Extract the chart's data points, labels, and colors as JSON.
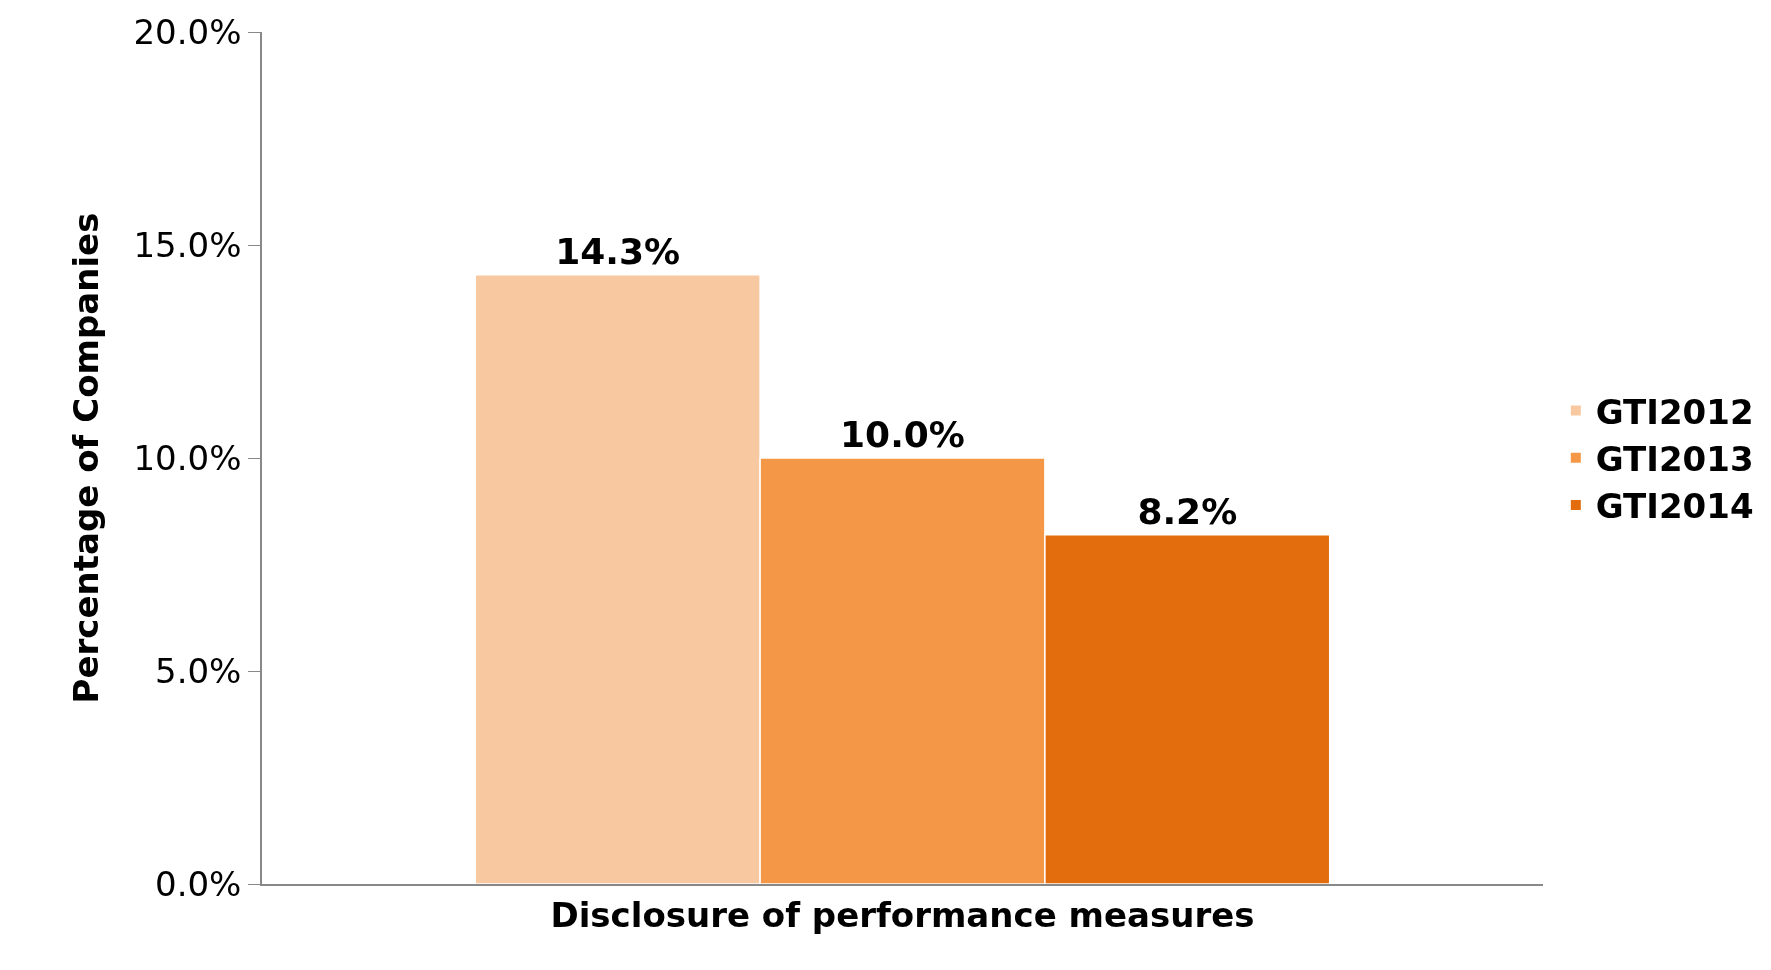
{
  "chart_data": {
    "type": "bar",
    "ylabel": "Percentage of Companies",
    "categories": [
      "Disclosure of performance measures"
    ],
    "series": [
      {
        "name": "GTI2012",
        "color": "#f8c8a0",
        "values": [
          14.3
        ],
        "value_labels": [
          "14.3%"
        ]
      },
      {
        "name": "GTI2013",
        "color": "#f49848",
        "values": [
          10.0
        ],
        "value_labels": [
          "10.0%"
        ]
      },
      {
        "name": "GTI2014",
        "color": "#e36c0c",
        "values": [
          8.2
        ],
        "value_labels": [
          "8.2%"
        ]
      }
    ],
    "ylim": [
      0,
      20
    ],
    "yticks": [
      {
        "value": 0,
        "label": "0.0%"
      },
      {
        "value": 5,
        "label": "5.0%"
      },
      {
        "value": 10,
        "label": "10.0%"
      },
      {
        "value": 15,
        "label": "15.0%"
      },
      {
        "value": 20,
        "label": "20.0%"
      }
    ],
    "legend": "right"
  }
}
